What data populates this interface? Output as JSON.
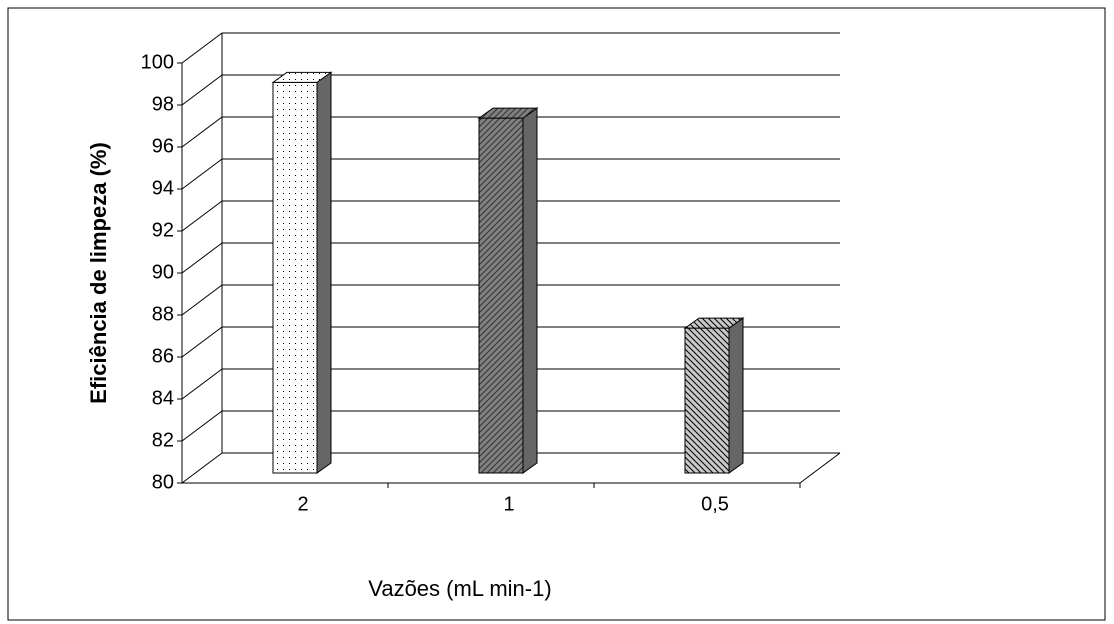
{
  "chart_data": {
    "type": "bar3d",
    "categories": [
      "2",
      "1",
      "0,5"
    ],
    "values": [
      98.6,
      96.9,
      86.9
    ],
    "colors": [
      "#ffffff",
      "#808080",
      "#c8c8c8"
    ],
    "ylim": [
      80,
      100
    ],
    "yticks": [
      80,
      82,
      84,
      86,
      88,
      90,
      92,
      94,
      96,
      98,
      100
    ],
    "ylabel": "Eficiência de limpeza (%)",
    "xlabel": "Vazões (mL min-1)",
    "grid": true
  }
}
